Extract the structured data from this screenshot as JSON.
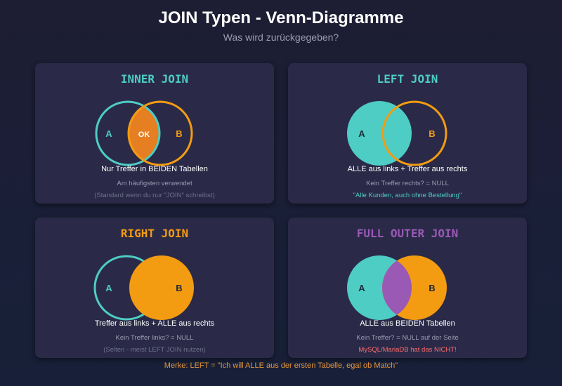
{
  "header": {
    "title": "JOIN Typen - Venn-Diagramme",
    "subtitle": "Was wird zurückgegeben?"
  },
  "colors": {
    "teal": "#4ecdc4",
    "orange": "#f39c12",
    "dark_orange": "#e67e22",
    "purple": "#9b59b6",
    "red_text": "#ff6b6b"
  },
  "cards": {
    "inner": {
      "title": "INNER JOIN",
      "label_a": "A",
      "label_b": "B",
      "overlap_label": "OK",
      "main": "Nur Treffer in BEIDEN Tabellen",
      "sub1": "Am häufigsten verwendet",
      "sub2": "(Standard wenn du nur \"JOIN\" schreibst)"
    },
    "left": {
      "title": "LEFT JOIN",
      "label_a": "A",
      "label_b": "B",
      "main": "ALLE aus links + Treffer aus rechts",
      "sub1": "Kein Treffer rechts? = NULL",
      "sub2": "\"Alle Kunden, auch ohne Bestellung\""
    },
    "right": {
      "title": "RIGHT JOIN",
      "label_a": "A",
      "label_b": "B",
      "main": "Treffer aus links + ALLE aus rechts",
      "sub1": "Kein Treffer links? = NULL",
      "sub2": "(Selten - meist LEFT JOIN nutzen)"
    },
    "full": {
      "title": "FULL OUTER JOIN",
      "label_a": "A",
      "label_b": "B",
      "main": "ALLE aus BEIDEN Tabellen",
      "sub1": "Kein Treffer? = NULL auf der Seite",
      "sub2": "MySQL/MariaDB hat das NICHT!"
    }
  },
  "footer": {
    "note": "Merke: LEFT = \"Ich will ALLE aus der ersten Tabelle, egal ob Match\""
  }
}
